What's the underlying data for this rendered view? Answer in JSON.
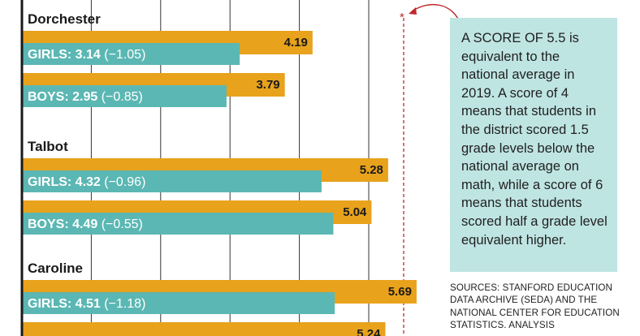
{
  "chart_data": {
    "type": "bar",
    "orientation": "horizontal",
    "grid": true,
    "reference_value": 5.5,
    "gap_bar_color": "#e8a21c",
    "score_bar_color": "#5bb7b3",
    "groups": [
      {
        "county": "Dorchester",
        "rows": [
          {
            "label_bold": "GIRLS: 3.14",
            "label_gap": "(−1.05)",
            "score": 3.14,
            "comparison": 4.19,
            "comparison_label": "4.19"
          },
          {
            "label_bold": "BOYS: 2.95",
            "label_gap": "(−0.85)",
            "score": 2.95,
            "comparison": 3.79,
            "comparison_label": "3.79"
          }
        ]
      },
      {
        "county": "Talbot",
        "rows": [
          {
            "label_bold": "GIRLS: 4.32",
            "label_gap": "(−0.96)",
            "score": 4.32,
            "comparison": 5.28,
            "comparison_label": "5.28"
          },
          {
            "label_bold": "BOYS: 4.49",
            "label_gap": "(−0.55)",
            "score": 4.49,
            "comparison": 5.04,
            "comparison_label": "5.04"
          }
        ]
      },
      {
        "county": "Caroline",
        "rows": [
          {
            "label_bold": "GIRLS: 4.51",
            "label_gap": "(−1.18)",
            "score": 4.51,
            "comparison": 5.69,
            "comparison_label": "5.69"
          },
          {
            "label_bold": "",
            "label_gap": "",
            "score": null,
            "comparison": 5.24,
            "comparison_label": "5.24"
          }
        ]
      }
    ],
    "reference_marker": "*"
  },
  "note": "A SCORE OF 5.5 is equivalent to the national average in 2019. A score of 4 means that students in the district scored 1.5 grade levels below the national average on math, while a score of 6 means that students scored half a grade level equivalent higher.",
  "sources": "SOURCES: STANFORD EDUCATION DATA ARCHIVE (SEDA) AND THE NATIONAL CENTER FOR EDUCATION STATISTICS. ANALYSIS"
}
